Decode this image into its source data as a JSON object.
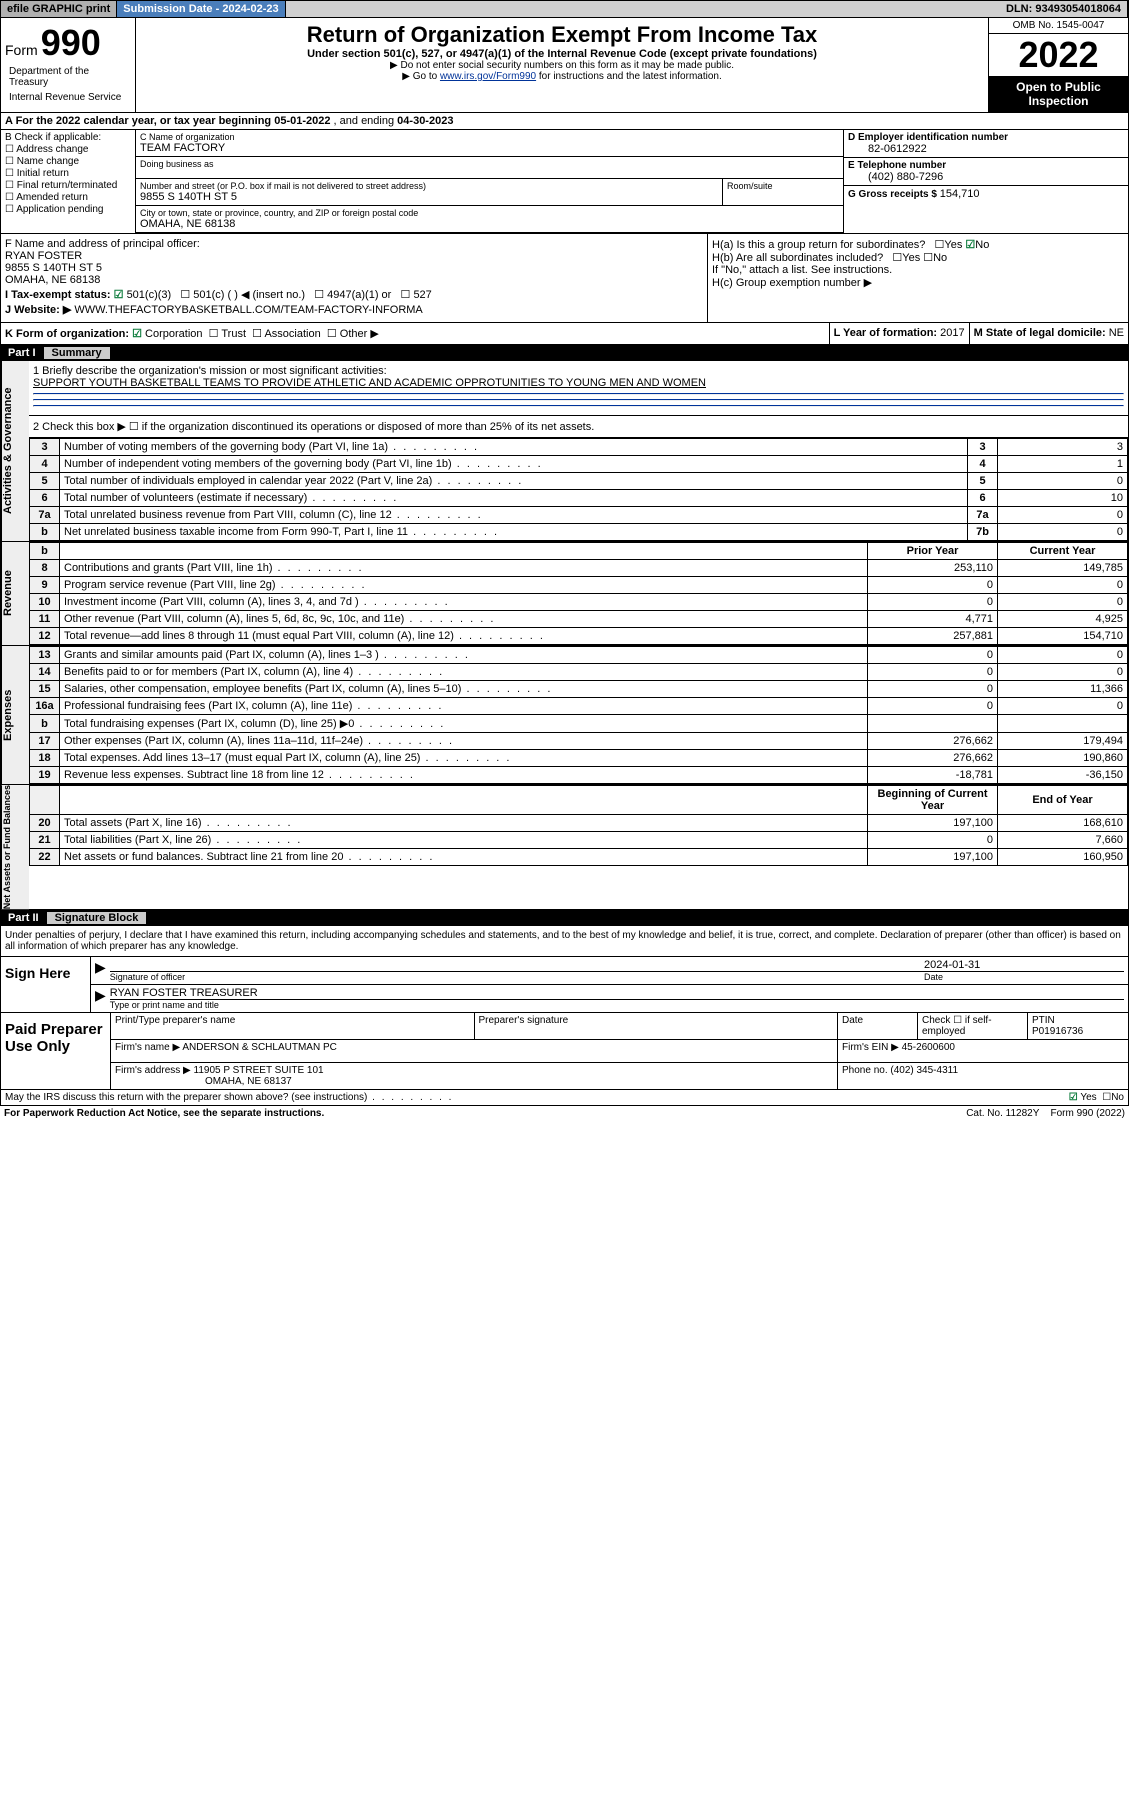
{
  "topbar": {
    "efile": "efile GRAPHIC print",
    "subdate_label": "Submission Date - ",
    "subdate": "2024-02-23",
    "dln_label": "DLN: ",
    "dln": "93493054018064"
  },
  "header": {
    "form_word": "Form",
    "form_num": "990",
    "title": "Return of Organization Exempt From Income Tax",
    "subtitle": "Under section 501(c), 527, or 4947(a)(1) of the Internal Revenue Code (except private foundations)",
    "note1": "▶ Do not enter social security numbers on this form as it may be made public.",
    "note2_a": "▶ Go to ",
    "note2_link": "www.irs.gov/Form990",
    "note2_b": " for instructions and the latest information.",
    "omb": "OMB No. 1545-0047",
    "year": "2022",
    "open1": "Open to Public",
    "open2": "Inspection",
    "dept1": "Department of the Treasury",
    "dept2": "Internal Revenue Service"
  },
  "rowA": {
    "text_a": "A For the 2022 calendar year, or tax year beginning ",
    "begin": "05-01-2022",
    "text_b": " , and ending ",
    "end": "04-30-2023"
  },
  "colB": {
    "hdr": "B Check if applicable:",
    "opts": [
      "Address change",
      "Name change",
      "Initial return",
      "Final return/terminated",
      "Amended return",
      "Application pending"
    ]
  },
  "colC": {
    "name_lbl": "C Name of organization",
    "name": "TEAM FACTORY",
    "dba_lbl": "Doing business as",
    "dba": "",
    "street_lbl": "Number and street (or P.O. box if mail is not delivered to street address)",
    "street": "9855 S 140TH ST 5",
    "room_lbl": "Room/suite",
    "room": "",
    "city_lbl": "City or town, state or province, country, and ZIP or foreign postal code",
    "city": "OMAHA, NE  68138"
  },
  "colD": {
    "d_lbl": "D Employer identification number",
    "ein": "82-0612922",
    "e_lbl": "E Telephone number",
    "phone": "(402) 880-7296",
    "g_lbl": "G Gross receipts $ ",
    "gross": "154,710"
  },
  "rowF": {
    "lbl": "F Name and address of principal officer:",
    "name": "RYAN FOSTER",
    "addr1": "9855 S 140TH ST 5",
    "addr2": "OMAHA, NE  68138"
  },
  "rowH": {
    "ha": "H(a)  Is this a group return for subordinates?",
    "ha_no": "No",
    "hb": "H(b)  Are all subordinates included?",
    "hb_note": "If \"No,\" attach a list. See instructions.",
    "hc": "H(c)  Group exemption number ▶"
  },
  "rowI": {
    "lbl": "I   Tax-exempt status:",
    "opt1": "501(c)(3)",
    "opt2": "501(c) (  ) ◀ (insert no.)",
    "opt3": "4947(a)(1) or",
    "opt4": "527"
  },
  "rowJ": {
    "lbl": "J   Website: ▶ ",
    "url": "WWW.THEFACTORYBASKETBALL.COM/TEAM-FACTORY-INFORMA"
  },
  "rowK": {
    "lbl": "K Form of organization:",
    "opts": [
      "Corporation",
      "Trust",
      "Association",
      "Other ▶"
    ],
    "l_lbl": "L Year of formation: ",
    "l_val": "2017",
    "m_lbl": "M State of legal domicile: ",
    "m_val": "NE"
  },
  "part1": {
    "part": "Part I",
    "title": "Summary",
    "line1_lbl": "1  Briefly describe the organization's mission or most significant activities:",
    "mission": "SUPPORT YOUTH BASKETBALL TEAMS TO PROVIDE ATHLETIC AND ACADEMIC OPPROTUNITIES TO YOUNG MEN AND WOMEN",
    "line2": "2   Check this box ▶ ☐  if the organization discontinued its operations or disposed of more than 25% of its net assets."
  },
  "governance": {
    "vtab": "Activities & Governance",
    "rows": [
      {
        "n": "3",
        "desc": "Number of voting members of the governing body (Part VI, line 1a)",
        "box": "3",
        "val": "3"
      },
      {
        "n": "4",
        "desc": "Number of independent voting members of the governing body (Part VI, line 1b)",
        "box": "4",
        "val": "1"
      },
      {
        "n": "5",
        "desc": "Total number of individuals employed in calendar year 2022 (Part V, line 2a)",
        "box": "5",
        "val": "0"
      },
      {
        "n": "6",
        "desc": "Total number of volunteers (estimate if necessary)",
        "box": "6",
        "val": "10"
      },
      {
        "n": "7a",
        "desc": "Total unrelated business revenue from Part VIII, column (C), line 12",
        "box": "7a",
        "val": "0"
      },
      {
        "n": "b",
        "desc": "Net unrelated business taxable income from Form 990-T, Part I, line 11",
        "box": "7b",
        "val": "0"
      }
    ]
  },
  "revenue": {
    "vtab": "Revenue",
    "hdr_prior": "Prior Year",
    "hdr_curr": "Current Year",
    "rows": [
      {
        "n": "8",
        "desc": "Contributions and grants (Part VIII, line 1h)",
        "prior": "253,110",
        "curr": "149,785"
      },
      {
        "n": "9",
        "desc": "Program service revenue (Part VIII, line 2g)",
        "prior": "0",
        "curr": "0"
      },
      {
        "n": "10",
        "desc": "Investment income (Part VIII, column (A), lines 3, 4, and 7d )",
        "prior": "0",
        "curr": "0"
      },
      {
        "n": "11",
        "desc": "Other revenue (Part VIII, column (A), lines 5, 6d, 8c, 9c, 10c, and 11e)",
        "prior": "4,771",
        "curr": "4,925"
      },
      {
        "n": "12",
        "desc": "Total revenue—add lines 8 through 11 (must equal Part VIII, column (A), line 12)",
        "prior": "257,881",
        "curr": "154,710"
      }
    ]
  },
  "expenses": {
    "vtab": "Expenses",
    "rows": [
      {
        "n": "13",
        "desc": "Grants and similar amounts paid (Part IX, column (A), lines 1–3 )",
        "prior": "0",
        "curr": "0"
      },
      {
        "n": "14",
        "desc": "Benefits paid to or for members (Part IX, column (A), line 4)",
        "prior": "0",
        "curr": "0"
      },
      {
        "n": "15",
        "desc": "Salaries, other compensation, employee benefits (Part IX, column (A), lines 5–10)",
        "prior": "0",
        "curr": "11,366"
      },
      {
        "n": "16a",
        "desc": "Professional fundraising fees (Part IX, column (A), line 11e)",
        "prior": "0",
        "curr": "0"
      },
      {
        "n": "b",
        "desc": "Total fundraising expenses (Part IX, column (D), line 25) ▶0",
        "prior": "",
        "curr": ""
      },
      {
        "n": "17",
        "desc": "Other expenses (Part IX, column (A), lines 11a–11d, 11f–24e)",
        "prior": "276,662",
        "curr": "179,494"
      },
      {
        "n": "18",
        "desc": "Total expenses. Add lines 13–17 (must equal Part IX, column (A), line 25)",
        "prior": "276,662",
        "curr": "190,860"
      },
      {
        "n": "19",
        "desc": "Revenue less expenses. Subtract line 18 from line 12",
        "prior": "-18,781",
        "curr": "-36,150"
      }
    ]
  },
  "netassets": {
    "vtab": "Net Assets or Fund Balances",
    "hdr_prior": "Beginning of Current Year",
    "hdr_curr": "End of Year",
    "rows": [
      {
        "n": "20",
        "desc": "Total assets (Part X, line 16)",
        "prior": "197,100",
        "curr": "168,610"
      },
      {
        "n": "21",
        "desc": "Total liabilities (Part X, line 26)",
        "prior": "0",
        "curr": "7,660"
      },
      {
        "n": "22",
        "desc": "Net assets or fund balances. Subtract line 21 from line 20",
        "prior": "197,100",
        "curr": "160,950"
      }
    ]
  },
  "part2": {
    "part": "Part II",
    "title": "Signature Block",
    "decl": "Under penalties of perjury, I declare that I have examined this return, including accompanying schedules and statements, and to the best of my knowledge and belief, it is true, correct, and complete. Declaration of preparer (other than officer) is based on all information of which preparer has any knowledge."
  },
  "sign": {
    "hdr": "Sign Here",
    "sig_lbl": "Signature of officer",
    "date_lbl": "Date",
    "date": "2024-01-31",
    "name": "RYAN FOSTER TREASURER",
    "name_lbl": "Type or print name and title"
  },
  "preparer": {
    "hdr": "Paid Preparer Use Only",
    "col1": "Print/Type preparer's name",
    "col2": "Preparer's signature",
    "col3": "Date",
    "col4a": "Check ☐ if self-employed",
    "col4b_lbl": "PTIN",
    "col4b": "P01916736",
    "firm_lbl": "Firm's name    ▶ ",
    "firm": "ANDERSON & SCHLAUTMAN PC",
    "ein_lbl": "Firm's EIN ▶ ",
    "ein": "45-2600600",
    "addr_lbl": "Firm's address ▶ ",
    "addr1": "11905 P STREET SUITE 101",
    "addr2": "OMAHA, NE  68137",
    "phone_lbl": "Phone no. ",
    "phone": "(402) 345-4311"
  },
  "footer": {
    "discuss": "May the IRS discuss this return with the preparer shown above? (see instructions)",
    "yes": "Yes",
    "no": "No",
    "paperwork": "For Paperwork Reduction Act Notice, see the separate instructions.",
    "cat": "Cat. No. 11282Y",
    "form": "Form 990 (2022)"
  }
}
